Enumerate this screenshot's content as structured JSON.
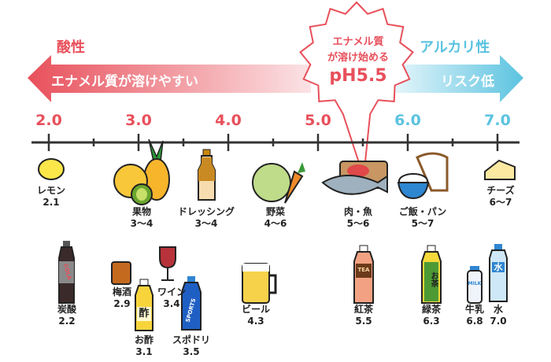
{
  "colors": {
    "acid": "#e8505b",
    "alkaline": "#5bc3e0",
    "axis": "#333333"
  },
  "header": {
    "acid_label": "酸性",
    "acid_arrow_text": "エナメル質が溶けやすい",
    "alkaline_label": "アルカリ性",
    "alkaline_arrow_text": "リスク低",
    "burst_line1": "エナメル質",
    "burst_line2": "が溶け始める",
    "burst_ph": "pH5.5"
  },
  "axis": {
    "range": [
      2.0,
      7.0
    ],
    "ticks": [
      "2.0",
      "3.0",
      "4.0",
      "5.0",
      "6.0",
      "7.0"
    ],
    "critical_ph": 5.5
  },
  "items": [
    {
      "name": "レモン",
      "ph": "2.1",
      "icon": "lemon-icon"
    },
    {
      "name": "果物",
      "ph": "3〜4",
      "icon": "fruit-icon"
    },
    {
      "name": "ドレッシング",
      "ph": "3〜4",
      "icon": "dressing-bottle-icon"
    },
    {
      "name": "野菜",
      "ph": "4〜6",
      "icon": "vegetable-icon"
    },
    {
      "name": "肉・魚",
      "ph": "5〜6",
      "icon": "meat-fish-icon"
    },
    {
      "name": "ご飯・パン",
      "ph": "5〜7",
      "icon": "rice-bread-icon"
    },
    {
      "name": "チーズ",
      "ph": "6〜7",
      "icon": "cheese-icon"
    },
    {
      "name": "炭酸",
      "ph": "2.2",
      "icon": "cola-bottle-icon",
      "bottle_text": "COLA"
    },
    {
      "name": "梅酒",
      "ph": "2.9",
      "icon": "umeshu-glass-icon"
    },
    {
      "name": "ワイン",
      "ph": "3.4",
      "icon": "wine-glass-icon"
    },
    {
      "name": "お酢",
      "ph": "3.1",
      "icon": "vinegar-bottle-icon",
      "bottle_text": "酢"
    },
    {
      "name": "スポドリ",
      "ph": "3.5",
      "icon": "sports-drink-icon",
      "bottle_text": "SPORTS"
    },
    {
      "name": "ビール",
      "ph": "4.3",
      "icon": "beer-mug-icon"
    },
    {
      "name": "紅茶",
      "ph": "5.5",
      "icon": "tea-bottle-icon",
      "bottle_text": "TEA"
    },
    {
      "name": "緑茶",
      "ph": "6.3",
      "icon": "green-tea-bottle-icon",
      "bottle_text": "お茶"
    },
    {
      "name": "牛乳",
      "ph": "6.8",
      "icon": "milk-bottle-icon",
      "bottle_text": "MILK"
    },
    {
      "name": "水",
      "ph": "7.0",
      "icon": "water-bottle-icon",
      "bottle_text": "水"
    }
  ]
}
